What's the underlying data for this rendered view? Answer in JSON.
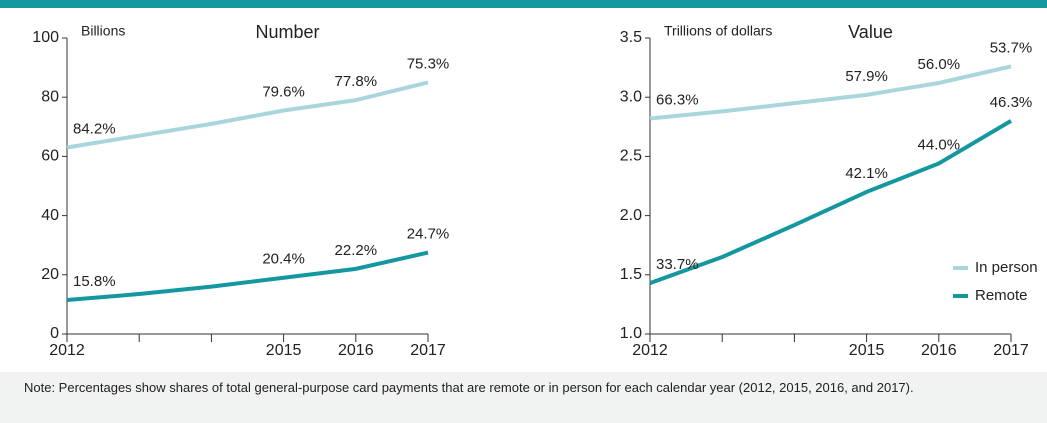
{
  "chart_data": [
    {
      "type": "line",
      "title": "Number",
      "ylabel": "Billions",
      "x": [
        2012,
        2013,
        2014,
        2015,
        2016,
        2017
      ],
      "xticks": [
        2012,
        2015,
        2016,
        2017
      ],
      "xminor": [
        2013,
        2014
      ],
      "ylim": [
        0,
        100
      ],
      "yticks": [
        0,
        20,
        40,
        60,
        80,
        100
      ],
      "xlim": [
        2012,
        2017
      ],
      "series": [
        {
          "color": "#a9d5dd",
          "values": [
            63,
            67,
            71,
            75.5,
            79,
            85
          ],
          "point_labels": [
            "84.2%",
            null,
            null,
            "79.6%",
            "77.8%",
            "75.3%"
          ]
        },
        {
          "color": "#14979f",
          "values": [
            11.5,
            13.5,
            16,
            19,
            22,
            27.5
          ],
          "point_labels": [
            "15.8%",
            null,
            null,
            "20.4%",
            "22.2%",
            "24.7%"
          ]
        }
      ]
    },
    {
      "type": "line",
      "title": "Value",
      "ylabel": "Trillions of dollars",
      "x": [
        2012,
        2013,
        2014,
        2015,
        2016,
        2017
      ],
      "xticks": [
        2012,
        2015,
        2016,
        2017
      ],
      "xminor": [
        2013,
        2014
      ],
      "ylim": [
        1,
        3.5
      ],
      "yticks": [
        {
          "value": 1,
          "label": "1.0"
        },
        1.5,
        {
          "value": 2,
          "label": "2.0"
        },
        2.5,
        {
          "value": 3,
          "label": "3.0"
        },
        3.5
      ],
      "xlim": [
        2012,
        2017
      ],
      "legend": "lower right",
      "series": [
        {
          "name": "In person",
          "color": "#a9d5dd",
          "values": [
            2.82,
            2.88,
            2.95,
            3.02,
            3.12,
            3.26
          ],
          "point_labels": [
            "66.3%",
            null,
            null,
            "57.9%",
            "56.0%",
            "53.7%"
          ]
        },
        {
          "name": "Remote",
          "color": "#14979f",
          "values": [
            1.43,
            1.65,
            1.92,
            2.2,
            2.44,
            2.8
          ],
          "point_labels": [
            "33.7%",
            null,
            null,
            "42.1%",
            "44.0%",
            "46.3%"
          ]
        }
      ]
    }
  ],
  "note": "Note: Percentages show shares of total general-purpose card payments that are remote or in person for each calendar year (2012, 2015, 2016, and 2017)."
}
